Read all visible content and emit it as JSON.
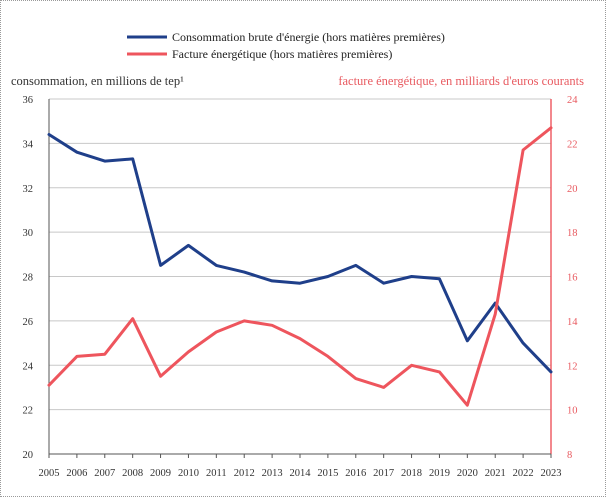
{
  "chart_data": {
    "type": "line",
    "x": [
      2005,
      2006,
      2007,
      2008,
      2009,
      2010,
      2011,
      2012,
      2013,
      2014,
      2015,
      2016,
      2017,
      2018,
      2019,
      2020,
      2021,
      2022,
      2023
    ],
    "series": [
      {
        "name": "Consommation brute d'énergie (hors matières premières)",
        "axis": "left",
        "color": "#1f3f8a",
        "values": [
          34.4,
          33.6,
          33.2,
          33.3,
          28.5,
          29.4,
          28.5,
          28.2,
          27.8,
          27.7,
          28.0,
          28.5,
          27.7,
          28.0,
          27.9,
          25.1,
          26.8,
          25.0,
          23.7
        ]
      },
      {
        "name": "Facture énergétique (hors matières premières)",
        "axis": "right",
        "color": "#ee555d",
        "values": [
          11.1,
          12.4,
          12.5,
          14.1,
          11.5,
          12.6,
          13.5,
          14.0,
          13.8,
          13.2,
          12.4,
          11.4,
          11.0,
          12.0,
          11.7,
          10.2,
          14.3,
          21.7,
          22.7
        ]
      }
    ],
    "ylabel_left": "consommation, en millions de tep¹",
    "ylabel_right": "facture énergétique, en milliards d'euros courants",
    "ylim_left": [
      20,
      36
    ],
    "ylim_right": [
      8,
      24
    ],
    "yticks_left": [
      "20",
      "22",
      "24",
      "26",
      "28",
      "30",
      "32",
      "34",
      "36"
    ],
    "yticks_right": [
      "8",
      "10",
      "12",
      "14",
      "16",
      "18",
      "20",
      "22",
      "24"
    ],
    "xticks": [
      "2005",
      "2006",
      "2007",
      "2008",
      "2009",
      "2010",
      "2011",
      "2012",
      "2013",
      "2014",
      "2015",
      "2016",
      "2017",
      "2018",
      "2019",
      "2020",
      "2021",
      "2022",
      "2023"
    ],
    "grid": "horizontal",
    "legend_position": "top-center",
    "colors": {
      "left_axis_text": "#333333",
      "right_axis_text": "#e85a60",
      "right_axis_line": "#ee555d",
      "grid": "#c8c8c8"
    }
  }
}
